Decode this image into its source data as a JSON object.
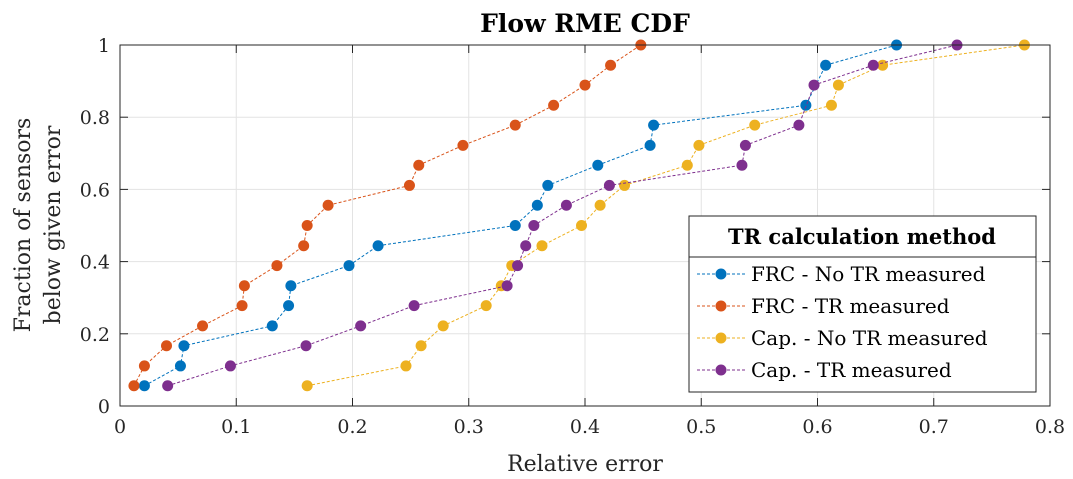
{
  "chart_data": {
    "type": "line",
    "title": "Flow RME CDF",
    "xlabel": "Relative error",
    "ylabel": [
      "Fraction of sensors",
      "below given error"
    ],
    "xlim": [
      0,
      0.8
    ],
    "ylim": [
      0,
      1
    ],
    "xticks": [
      0,
      0.1,
      0.2,
      0.3,
      0.4,
      0.5,
      0.6,
      0.7,
      0.8
    ],
    "xtick_labels": [
      "0",
      "0.1",
      "0.2",
      "0.3",
      "0.4",
      "0.5",
      "0.6",
      "0.7",
      "0.8"
    ],
    "yticks": [
      0,
      0.2,
      0.4,
      0.6,
      0.8,
      1
    ],
    "ytick_labels": [
      "0",
      "0.2",
      "0.4",
      "0.6",
      "0.8",
      "1"
    ],
    "grid": true,
    "legend": {
      "title": "TR calculation method",
      "position": "bottom-right"
    },
    "series": [
      {
        "name": "FRC - No TR measured",
        "color": "#0072BD",
        "x": [
          0.021,
          0.052,
          0.055,
          0.131,
          0.145,
          0.147,
          0.197,
          0.222,
          0.34,
          0.359,
          0.368,
          0.411,
          0.456,
          0.459,
          0.59,
          0.607,
          0.668
        ],
        "y": [
          0.056,
          0.111,
          0.167,
          0.222,
          0.278,
          0.333,
          0.389,
          0.444,
          0.5,
          0.556,
          0.611,
          0.667,
          0.722,
          0.778,
          0.833,
          0.944,
          1.0
        ]
      },
      {
        "name": "FRC - TR measured",
        "color": "#D95319",
        "x": [
          0.012,
          0.021,
          0.04,
          0.071,
          0.105,
          0.107,
          0.135,
          0.158,
          0.161,
          0.179,
          0.249,
          0.257,
          0.295,
          0.34,
          0.373,
          0.4,
          0.422,
          0.448
        ],
        "y": [
          0.056,
          0.111,
          0.167,
          0.222,
          0.278,
          0.333,
          0.389,
          0.444,
          0.5,
          0.556,
          0.611,
          0.667,
          0.722,
          0.778,
          0.833,
          0.889,
          0.944,
          1.0
        ]
      },
      {
        "name": "Cap. - No TR measured",
        "color": "#EDB120",
        "x": [
          0.161,
          0.246,
          0.259,
          0.278,
          0.315,
          0.328,
          0.337,
          0.363,
          0.397,
          0.413,
          0.434,
          0.488,
          0.498,
          0.546,
          0.612,
          0.618,
          0.656,
          0.778
        ],
        "y": [
          0.056,
          0.111,
          0.167,
          0.222,
          0.278,
          0.333,
          0.389,
          0.444,
          0.5,
          0.556,
          0.611,
          0.667,
          0.722,
          0.778,
          0.833,
          0.889,
          0.944,
          1.0
        ]
      },
      {
        "name": "Cap. - TR measured",
        "color": "#7E2F8E",
        "x": [
          0.041,
          0.095,
          0.16,
          0.207,
          0.253,
          0.333,
          0.342,
          0.349,
          0.356,
          0.384,
          0.421,
          0.535,
          0.538,
          0.584,
          0.597,
          0.648,
          0.72
        ],
        "y": [
          0.056,
          0.111,
          0.167,
          0.222,
          0.278,
          0.333,
          0.389,
          0.444,
          0.5,
          0.556,
          0.611,
          0.667,
          0.722,
          0.778,
          0.889,
          0.944,
          1.0
        ]
      }
    ]
  }
}
